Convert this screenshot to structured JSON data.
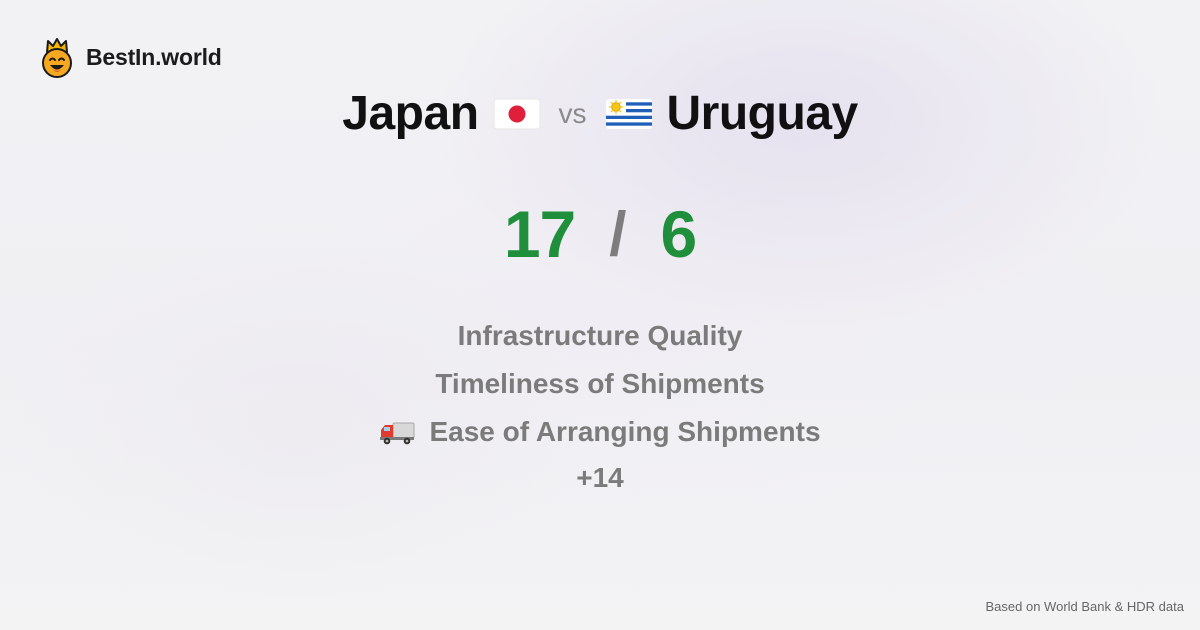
{
  "brand": {
    "name": "BestIn.world",
    "logo_icon": "crowned-smiley-icon"
  },
  "comparison": {
    "left_country": "Japan",
    "left_flag": "japan-flag-icon",
    "vs_label": "vs",
    "right_country": "Uruguay",
    "right_flag": "uruguay-flag-icon"
  },
  "score": {
    "left": "17",
    "separator": "/",
    "right": "6",
    "color": "#1f8f3c"
  },
  "metrics": [
    {
      "label": "Infrastructure Quality",
      "icon": ""
    },
    {
      "label": "Timeliness of Shipments",
      "icon": ""
    },
    {
      "label": "Ease of Arranging Shipments",
      "icon": "delivery-truck-icon"
    }
  ],
  "more_label": "+14",
  "footer": {
    "source": "Based on World Bank & HDR data"
  }
}
